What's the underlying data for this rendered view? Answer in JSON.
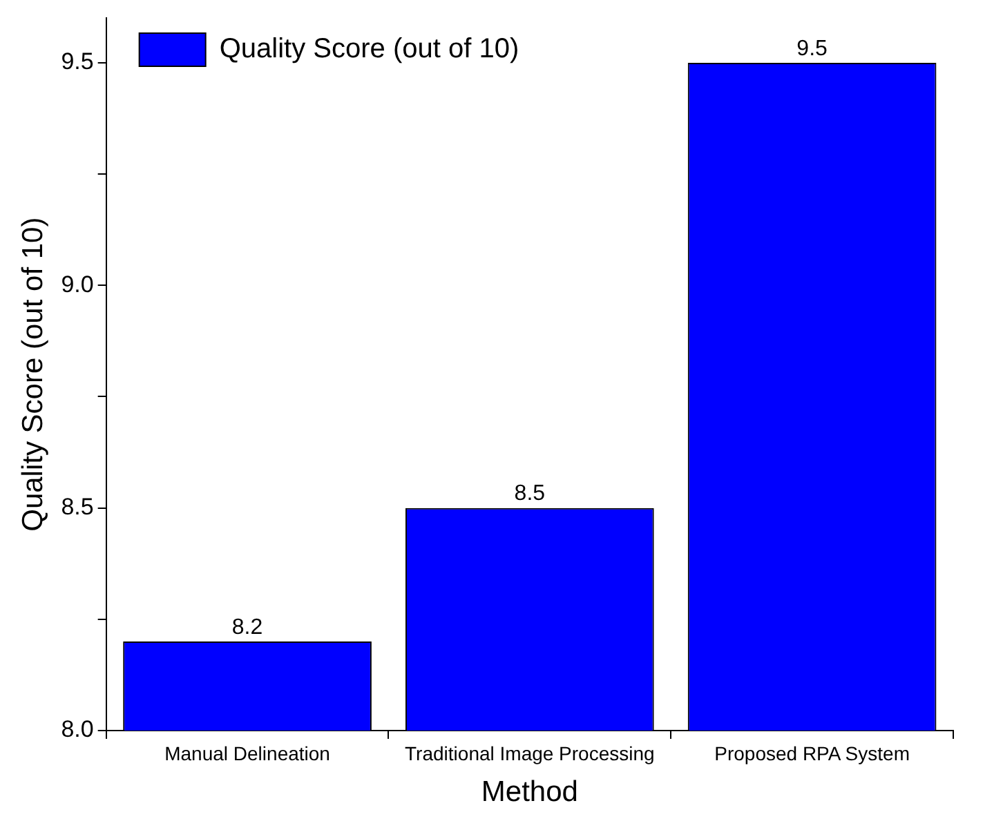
{
  "chart_data": {
    "type": "bar",
    "xlabel": "Method",
    "ylabel": "Quality Score (out of 10)",
    "categories": [
      "Manual Delineation",
      "Traditional Image Processing",
      "Proposed RPA System"
    ],
    "series": [
      {
        "name": "Quality Score (out of 10)",
        "color": "#0000ff",
        "values": [
          8.2,
          8.5,
          9.5
        ]
      }
    ],
    "ylim": [
      8.0,
      9.6
    ],
    "yticks": [
      {
        "value": 8.0,
        "label": "8.0"
      },
      {
        "value": 8.25,
        "label": null
      },
      {
        "value": 8.5,
        "label": "8.5"
      },
      {
        "value": 8.75,
        "label": null
      },
      {
        "value": 9.0,
        "label": "9.0"
      },
      {
        "value": 9.25,
        "label": null
      },
      {
        "value": 9.5,
        "label": "9.5"
      }
    ],
    "data_labels": true,
    "grid": false,
    "legend": "top left"
  }
}
